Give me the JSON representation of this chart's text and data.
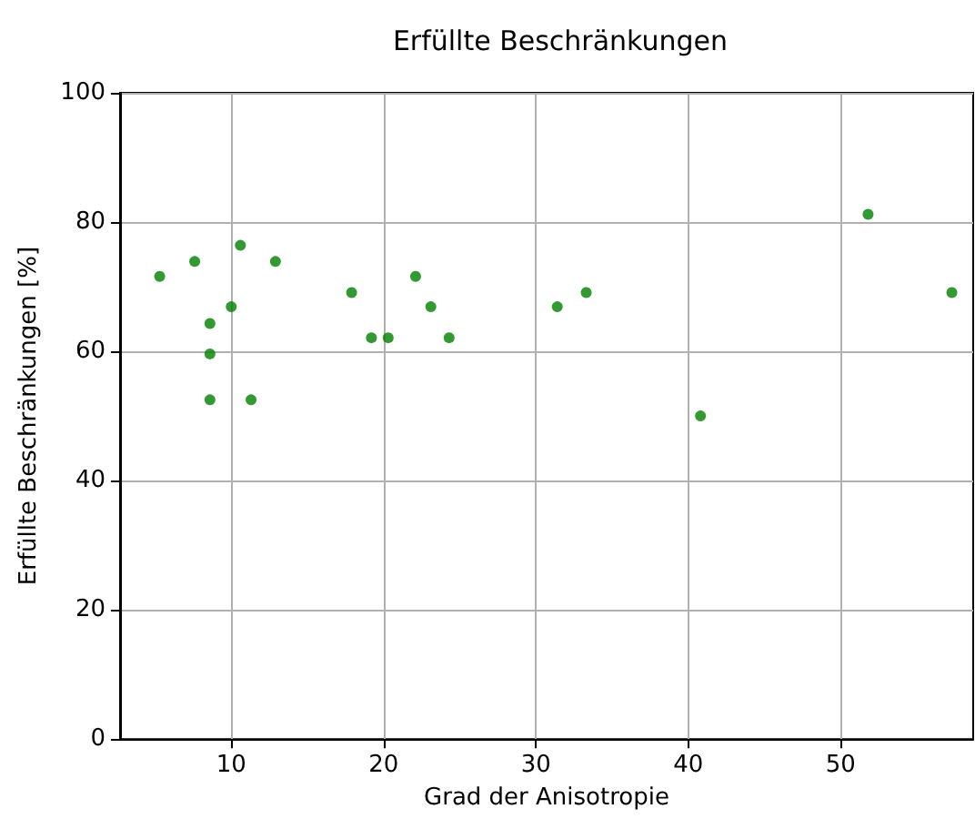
{
  "chart_data": {
    "type": "scatter",
    "title": "Erfüllte Beschränkungen",
    "xlabel": "Grad der Anisotropie",
    "ylabel": "Erfüllte Beschränkungen [%]",
    "x": [
      5.3,
      7.6,
      8.6,
      8.6,
      8.6,
      10.0,
      10.6,
      11.3,
      12.9,
      17.9,
      19.2,
      20.3,
      22.1,
      23.1,
      24.3,
      31.4,
      33.3,
      40.8,
      51.8,
      57.3
    ],
    "series": [
      {
        "color": "#008000",
        "values": [
          71.6,
          73.9,
          64.3,
          59.6,
          52.5,
          66.9,
          76.4,
          52.5,
          73.9,
          69.1,
          62.1,
          62.1,
          71.6,
          66.9,
          62.1,
          66.9,
          69.1,
          50.0,
          81.2,
          69.1
        ]
      }
    ],
    "xlim": [
      2.7,
      58.7
    ],
    "xticks": [
      10,
      20,
      30,
      40,
      50
    ],
    "ylim": [
      0,
      100
    ],
    "yticks": [
      0,
      20,
      40,
      60,
      80,
      100
    ],
    "grid": true,
    "marker": "circle"
  }
}
